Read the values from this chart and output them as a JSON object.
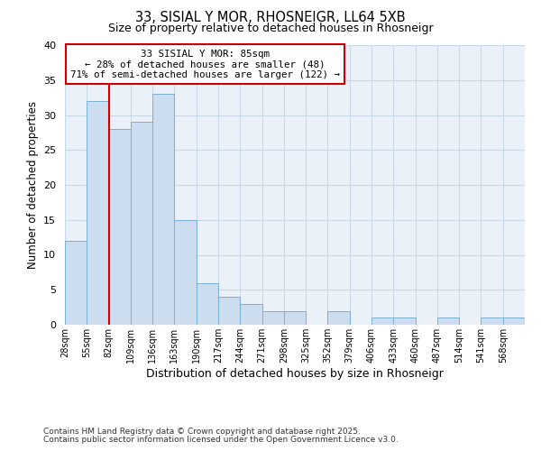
{
  "title": "33, SISIAL Y MOR, RHOSNEIGR, LL64 5XB",
  "subtitle": "Size of property relative to detached houses in Rhosneigr",
  "xlabel": "Distribution of detached houses by size in Rhosneigr",
  "ylabel": "Number of detached properties",
  "all_labels": [
    "28sqm",
    "55sqm",
    "82sqm",
    "109sqm",
    "136sqm",
    "163sqm",
    "190sqm",
    "217sqm",
    "244sqm",
    "271sqm",
    "298sqm",
    "325sqm",
    "352sqm",
    "379sqm",
    "406sqm",
    "433sqm",
    "460sqm",
    "487sqm",
    "514sqm",
    "541sqm",
    "568sqm"
  ],
  "bar_counts": [
    12,
    32,
    28,
    29,
    33,
    15,
    6,
    4,
    3,
    2,
    2,
    0,
    2,
    0,
    1,
    1,
    0,
    1,
    0,
    1,
    1
  ],
  "ylim": [
    0,
    40
  ],
  "yticks": [
    0,
    5,
    10,
    15,
    20,
    25,
    30,
    35,
    40
  ],
  "bar_color": "#ccddf0",
  "bar_edge_color": "#7aafd4",
  "grid_color": "#c8d8e8",
  "bg_color": "#eaf1f8",
  "annotation_text": "33 SISIAL Y MOR: 85sqm\n← 28% of detached houses are smaller (48)\n71% of semi-detached houses are larger (122) →",
  "vline_color": "#cc0000",
  "footer1": "Contains HM Land Registry data © Crown copyright and database right 2025.",
  "footer2": "Contains public sector information licensed under the Open Government Licence v3.0.",
  "n_bars": 21
}
